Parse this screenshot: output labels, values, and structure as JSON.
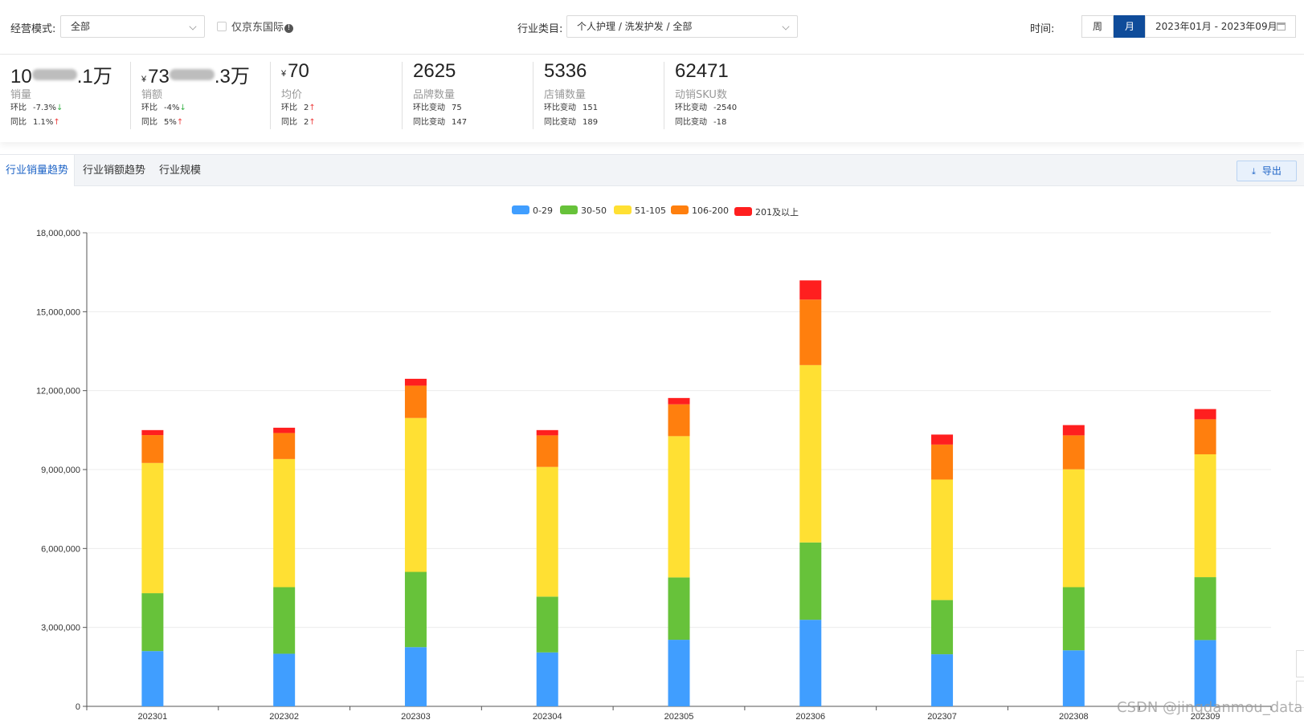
{
  "filters": {
    "mode_label": "经营模式:",
    "mode_value": "全部",
    "jd_intl_label": "仅京东国际",
    "industry_label": "行业类目:",
    "industry_value": "个人护理 / 洗发护发 / 全部",
    "time_label": "时间:",
    "week_label": "周",
    "month_label": "月",
    "date_range": "2023年01月 - 2023年09月"
  },
  "kpis": [
    {
      "prefix": "10",
      "suffix": ".1万",
      "currency": "",
      "name": "销量",
      "sub1_key": "环比",
      "sub1_val": "-7.3%",
      "sub1_arrow": "↓",
      "sub2_key": "同比",
      "sub2_val": "1.1%",
      "sub2_arrow": "↑"
    },
    {
      "prefix": "73",
      "suffix": ".3万",
      "currency": "¥",
      "name": "销额",
      "sub1_key": "环比",
      "sub1_val": "-4%",
      "sub1_arrow": "↓",
      "sub2_key": "同比",
      "sub2_val": "5%",
      "sub2_arrow": "↑"
    },
    {
      "value": "70",
      "currency": "¥",
      "name": "均价",
      "sub1_key": "环比",
      "sub1_val": "2",
      "sub1_arrow": "↑",
      "sub2_key": "同比",
      "sub2_val": "2",
      "sub2_arrow": "↑"
    },
    {
      "value": "2625",
      "name": "品牌数量",
      "sub1_key": "环比变动",
      "sub1_val": "75",
      "sub2_key": "同比变动",
      "sub2_val": "147"
    },
    {
      "value": "5336",
      "name": "店铺数量",
      "sub1_key": "环比变动",
      "sub1_val": "151",
      "sub2_key": "同比变动",
      "sub2_val": "189"
    },
    {
      "value": "62471",
      "name": "动销SKU数",
      "sub1_key": "环比变动",
      "sub1_val": "-2540",
      "sub2_key": "同比变动",
      "sub2_val": "-18"
    }
  ],
  "tabs": [
    {
      "label": "行业销量趋势",
      "active": true
    },
    {
      "label": "行业销额趋势",
      "active": false
    },
    {
      "label": "行业规模",
      "active": false
    }
  ],
  "export_label": "导出",
  "watermark": "CSDN @jingdanmou_data",
  "colors": {
    "primary": "#0f4c9a",
    "up": "#ee4444",
    "down": "#3bb34a"
  },
  "chart_data": {
    "type": "bar",
    "stacked": true,
    "categories": [
      "202301",
      "202302",
      "202303",
      "202304",
      "202305",
      "202306",
      "202307",
      "202308",
      "202309"
    ],
    "series": [
      {
        "name": "0-29",
        "color": "#409eff",
        "values": [
          2100000,
          2000000,
          2250000,
          2050000,
          2530000,
          3290000,
          1980000,
          2130000,
          2520000
        ]
      },
      {
        "name": "30-50",
        "color": "#67c23a",
        "values": [
          2200000,
          2530000,
          2860000,
          2120000,
          2370000,
          2940000,
          2060000,
          2400000,
          2390000
        ]
      },
      {
        "name": "51-105",
        "color": "#ffe033",
        "values": [
          4950000,
          4870000,
          5850000,
          4930000,
          5370000,
          6740000,
          4580000,
          4480000,
          4670000
        ]
      },
      {
        "name": "106-200",
        "color": "#ff7f0e",
        "values": [
          1060000,
          990000,
          1230000,
          1200000,
          1210000,
          2490000,
          1330000,
          1290000,
          1330000
        ]
      },
      {
        "name": "201及以上",
        "color": "#ff1f1f",
        "values": [
          190000,
          200000,
          260000,
          200000,
          240000,
          730000,
          380000,
          390000,
          390000
        ]
      }
    ],
    "ylim": [
      0,
      18000000
    ],
    "yticks": [
      0,
      3000000,
      6000000,
      9000000,
      12000000,
      15000000,
      18000000
    ],
    "ytick_labels": [
      "0",
      "3,000,000",
      "6,000,000",
      "9,000,000",
      "12,000,000",
      "15,000,000",
      "18,000,000"
    ],
    "xlabel": "",
    "ylabel": "",
    "legend_position": "top-center"
  }
}
